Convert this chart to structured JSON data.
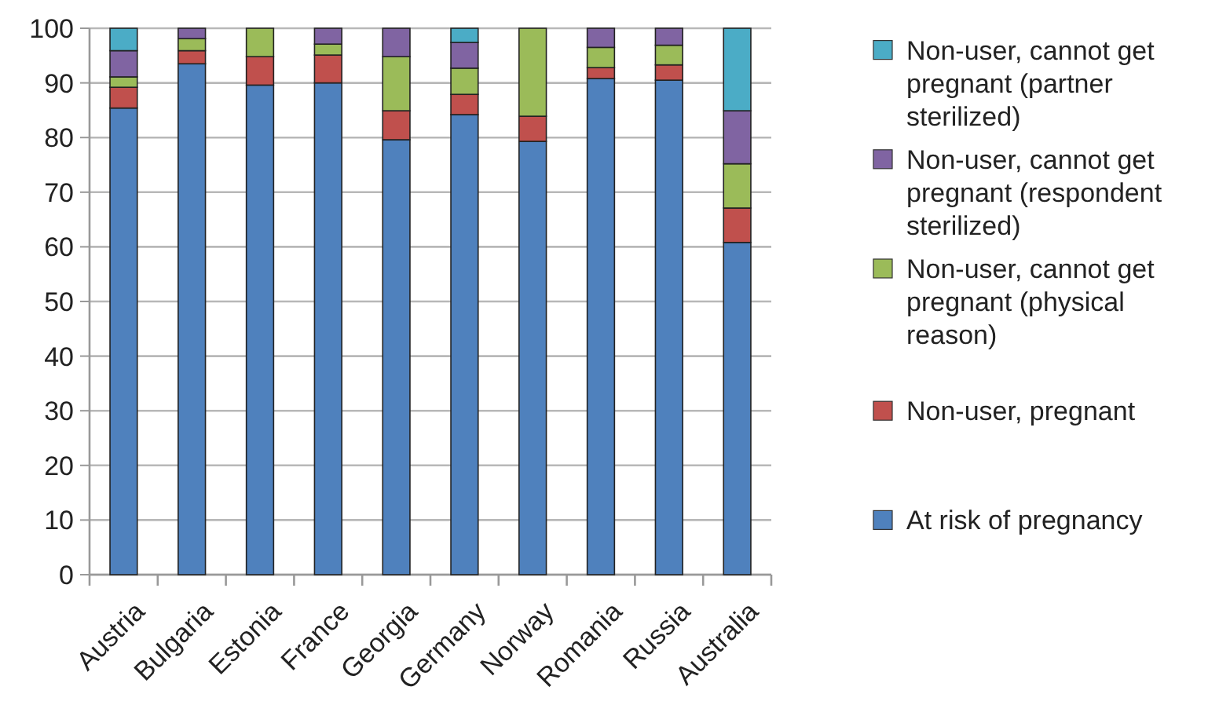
{
  "chart_data": {
    "type": "bar",
    "stacked": true,
    "categories": [
      "Austria",
      "Bulgaria",
      "Estonia",
      "France",
      "Georgia",
      "Germany",
      "Norway",
      "Romania",
      "Russia",
      "Australia"
    ],
    "series": [
      {
        "name": "At risk of pregnancy",
        "color": "#4f81bd",
        "values": [
          85.4,
          93.5,
          89.6,
          90,
          79.6,
          84.2,
          79.3,
          90.8,
          90.5,
          60.8
        ]
      },
      {
        "name": "Non-user, pregnant",
        "color": "#c0504d",
        "values": [
          3.8,
          2.4,
          5.2,
          5.1,
          5.3,
          3.7,
          4.6,
          2,
          2.8,
          6.3
        ]
      },
      {
        "name": "Non-user, cannot get pregnant (physical reason)",
        "color": "#9bbb59",
        "values": [
          1.9,
          2.2,
          5.2,
          2,
          9.9,
          4.8,
          16.1,
          3.7,
          3.6,
          8.1
        ]
      },
      {
        "name": "Non-user, cannot get pregnant (respondent sterilized)",
        "color": "#8064a2",
        "values": [
          4.8,
          1.9,
          0,
          2.9,
          5.2,
          4.7,
          0,
          3.5,
          3.1,
          9.7
        ]
      },
      {
        "name": "Non-user, cannot get pregnant (partner sterilized)",
        "color": "#4bacc6",
        "values": [
          4.1,
          0,
          0,
          0,
          0,
          2.6,
          0,
          0,
          0,
          15.1
        ]
      }
    ],
    "ylim": [
      0,
      100
    ],
    "yticks": [
      0,
      10,
      20,
      30,
      40,
      50,
      60,
      70,
      80,
      90,
      100
    ],
    "grid": "y",
    "legend": "right"
  }
}
